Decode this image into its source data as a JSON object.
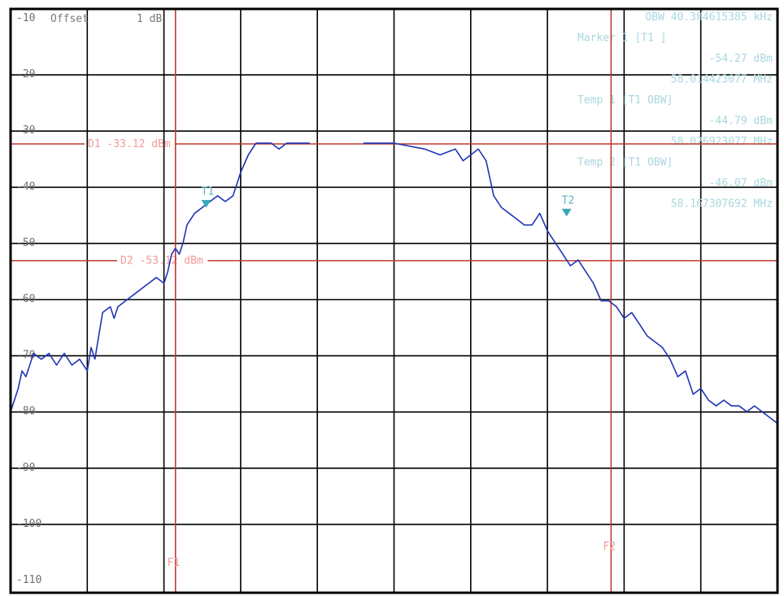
{
  "window": {
    "offset_label": "Offset",
    "offset_value": "1 dB"
  },
  "chart_data": {
    "type": "line",
    "title": "",
    "xlabel": "",
    "ylabel": "",
    "ylim": [
      -110,
      -10
    ],
    "y_ticks": [
      -10,
      -20,
      -30,
      -40,
      -50,
      -60,
      -70,
      -80,
      -90,
      -100,
      -110
    ],
    "y_tick_labels": [
      "-10",
      "-20",
      "-30",
      "-40",
      "-50",
      "-60",
      "-70",
      "-80",
      "-90",
      "-100",
      "-110"
    ],
    "xlim": [
      0,
      10
    ],
    "grid": true,
    "series": [
      {
        "color": "#1f35b5",
        "x": [
          0.0,
          0.05,
          0.1,
          0.15,
          0.2,
          0.3,
          0.4,
          0.5,
          0.6,
          0.7,
          0.8,
          0.9,
          1.0,
          1.05,
          1.1,
          1.15,
          1.2,
          1.3,
          1.35,
          1.4,
          1.5,
          1.6,
          1.7,
          1.8,
          1.9,
          2.0,
          2.05,
          2.1,
          2.15,
          2.2,
          2.25,
          2.3,
          2.4,
          2.5,
          2.6,
          2.7,
          2.8,
          2.9,
          3.0,
          3.1,
          3.2,
          3.3,
          3.4,
          3.5,
          3.6,
          3.7,
          3.8,
          3.9,
          4.0,
          4.1,
          4.2,
          4.3,
          4.4,
          4.5,
          4.6,
          4.7,
          4.8,
          4.9,
          5.0,
          5.2,
          5.4,
          5.6,
          5.8,
          5.9,
          6.0,
          6.1,
          6.2,
          6.3,
          6.4,
          6.5,
          6.6,
          6.7,
          6.8,
          6.9,
          7.0,
          7.1,
          7.2,
          7.3,
          7.4,
          7.5,
          7.6,
          7.7,
          7.8,
          7.9,
          8.0,
          8.1,
          8.2,
          8.3,
          8.4,
          8.5,
          8.6,
          8.7,
          8.8,
          8.9,
          9.0,
          9.1,
          9.2,
          9.3,
          9.4,
          9.5,
          9.6,
          9.7,
          9.8,
          9.9,
          10.0
        ],
        "y": [
          -79,
          -77,
          -75,
          -72,
          -73,
          -69,
          -70,
          -69,
          -71,
          -69,
          -71,
          -70,
          -72,
          -68,
          -70,
          -66,
          -62,
          -61,
          -63,
          -61,
          -60,
          -59,
          -58,
          -57,
          -56,
          -57,
          -55,
          -52,
          -51,
          -52,
          -50,
          -47,
          -45,
          -44,
          -43,
          -42,
          -43,
          -42,
          -38,
          -35,
          -33,
          -33,
          -33,
          -34,
          -33,
          -33,
          -33,
          -33,
          -33,
          -33,
          -33,
          -33,
          -33,
          -33,
          -33,
          -33,
          -33,
          -33,
          -33,
          -33.5,
          -34,
          -35,
          -34,
          -36,
          -35,
          -34,
          -36,
          -42,
          -44,
          -45,
          -46,
          -47,
          -47,
          -45,
          -48,
          -50,
          -52,
          -54,
          -53,
          -55,
          -57,
          -60,
          -60,
          -61,
          -63,
          -62,
          -64,
          -66,
          -67,
          -68,
          -70,
          -73,
          -72,
          -76,
          -75,
          -77,
          -78,
          -77,
          -78,
          -78,
          -79,
          -78,
          -79,
          -80,
          -81
        ]
      }
    ],
    "gaps": [
      [
        3.95,
        4.55
      ]
    ],
    "display_lines": [
      {
        "label": "D1",
        "value_dbm": -33.12,
        "text": "D1 -33.12 dBm",
        "color": "#c0392b"
      },
      {
        "label": "D2",
        "value_dbm": -53.12,
        "text": "D2 -53.12 dBm",
        "color": "#c0392b"
      }
    ],
    "frequency_lines": [
      {
        "label": "F1",
        "x": 2.15,
        "color": "#c0392b"
      },
      {
        "label": "F2",
        "x": 7.83,
        "color": "#c0392b"
      }
    ],
    "markers": [
      {
        "label": "T1",
        "x": 2.55,
        "y": -43.5,
        "color": "#3aa8b8"
      },
      {
        "label": "T2",
        "x": 7.25,
        "y": -45.0,
        "color": "#3aa8b8"
      }
    ],
    "marker_info": [
      "OBW 40.384615385 kHz",
      "Marker 1 [T1 ]",
      "-54.27 dBm",
      "58.014423077 MHz",
      "Temp 1 [T1 OBW]",
      "-44.79 dBm",
      "58.026923077 MHz",
      "Temp 2 [T1 OBW]",
      "-46.07 dBm",
      "58.167307692 MHz"
    ]
  }
}
